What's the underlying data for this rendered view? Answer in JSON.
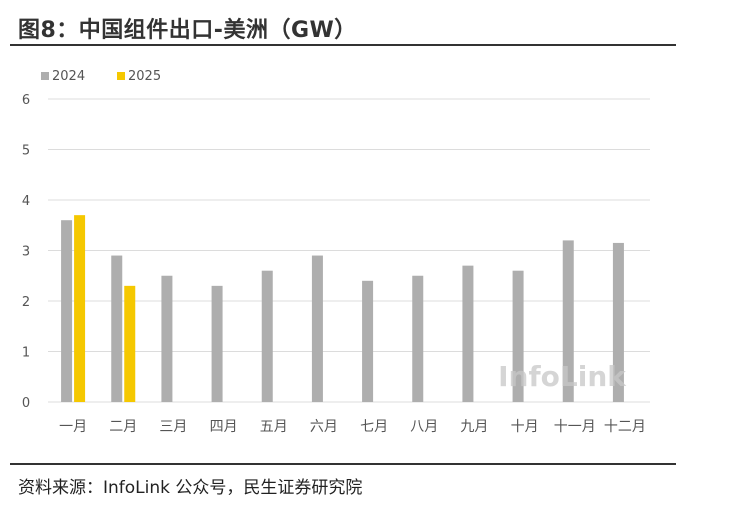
{
  "title": "图8：中国组件出口-美洲（GW）",
  "source": "资料来源：InfoLink 公众号，民生证券研究院",
  "watermark": "InfoLink",
  "colors": {
    "series_2024": "#aeaeae",
    "series_2025": "#f5c800",
    "grid": "#dcdcdc",
    "axis_text": "#555555"
  },
  "chart_data": {
    "type": "bar",
    "categories": [
      "一月",
      "二月",
      "三月",
      "四月",
      "五月",
      "六月",
      "七月",
      "八月",
      "九月",
      "十月",
      "十一月",
      "十二月"
    ],
    "series": [
      {
        "name": "2024",
        "values": [
          3.6,
          2.9,
          2.5,
          2.3,
          2.6,
          2.9,
          2.4,
          2.5,
          2.7,
          2.6,
          3.2,
          3.15
        ]
      },
      {
        "name": "2025",
        "values": [
          3.7,
          2.3,
          null,
          null,
          null,
          null,
          null,
          null,
          null,
          null,
          null,
          null
        ]
      }
    ],
    "yticks": [
      0,
      1,
      2,
      3,
      4,
      5,
      6
    ],
    "ylim": [
      0,
      6
    ],
    "grid": true,
    "legend_position": "top-left"
  }
}
